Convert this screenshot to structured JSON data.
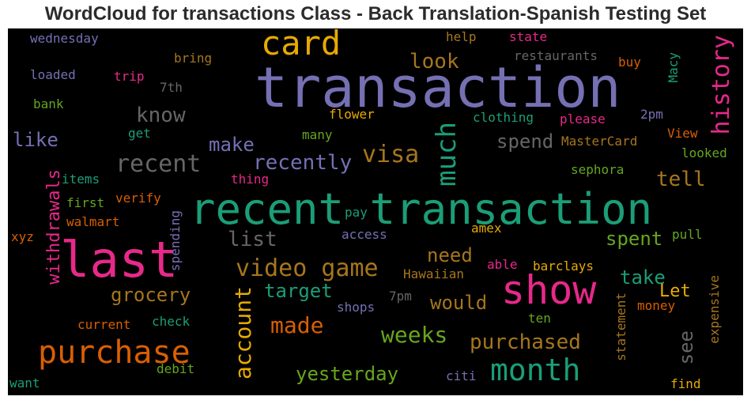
{
  "title": "WordCloud for transactions Class - Back Translation-Spanish Testing Set",
  "colors": {
    "purple": "#7570b3",
    "teal": "#1b9e77",
    "orange": "#d95f02",
    "pink": "#e7298a",
    "green": "#66a61e",
    "gold": "#e6ab02",
    "brown": "#a6761d",
    "gray": "#666666",
    "background": "#000000"
  },
  "words": {
    "transaction": "transaction",
    "recent_transaction": "recent transaction",
    "last": "last",
    "show": "show",
    "card": "card",
    "purchase": "purchase",
    "month": "month",
    "much": "much",
    "history": "history",
    "video_game": "video game",
    "recent": "recent",
    "recently": "recently",
    "visa": "visa",
    "account": "account",
    "made": "made",
    "weeks": "weeks",
    "purchased": "purchased",
    "know": "know",
    "look": "look",
    "make": "make",
    "like": "like",
    "spend": "spend",
    "tell": "tell",
    "list": "list",
    "spent": "spent",
    "need": "need",
    "take": "take",
    "grocery": "grocery",
    "target": "target",
    "would": "would",
    "yesterday": "yesterday",
    "withdrawals": "withdrawals",
    "let": "Let",
    "see": "see",
    "wednesday": "wednesday",
    "bring": "bring",
    "loaded": "loaded",
    "trip": "trip",
    "seventh": "7th",
    "bank": "bank",
    "help": "help",
    "state": "state",
    "restaurants": "restaurants",
    "buy": "buy",
    "macy": "Macy",
    "flower": "flower",
    "clothing": "clothing",
    "please": "please",
    "two_pm": "2pm",
    "get": "get",
    "many": "many",
    "mastercard": "MasterCard",
    "view": "View",
    "looked": "looked",
    "sephora": "sephora",
    "items": "items",
    "thing": "thing",
    "first": "first",
    "verify": "verify",
    "walmart": "walmart",
    "pay": "pay",
    "access": "access",
    "amex": "amex",
    "pull": "pull",
    "xyz": "xyz",
    "spending": "spending",
    "able": "able",
    "barclays": "barclays",
    "hawaiian": "Hawaiian",
    "shops": "shops",
    "seven_pm": "7pm",
    "money": "money",
    "statement": "statement",
    "expensive": "expensive",
    "ten": "ten",
    "current": "current",
    "check": "check",
    "debit": "debit",
    "want": "want",
    "citi": "citi",
    "find": "find"
  }
}
